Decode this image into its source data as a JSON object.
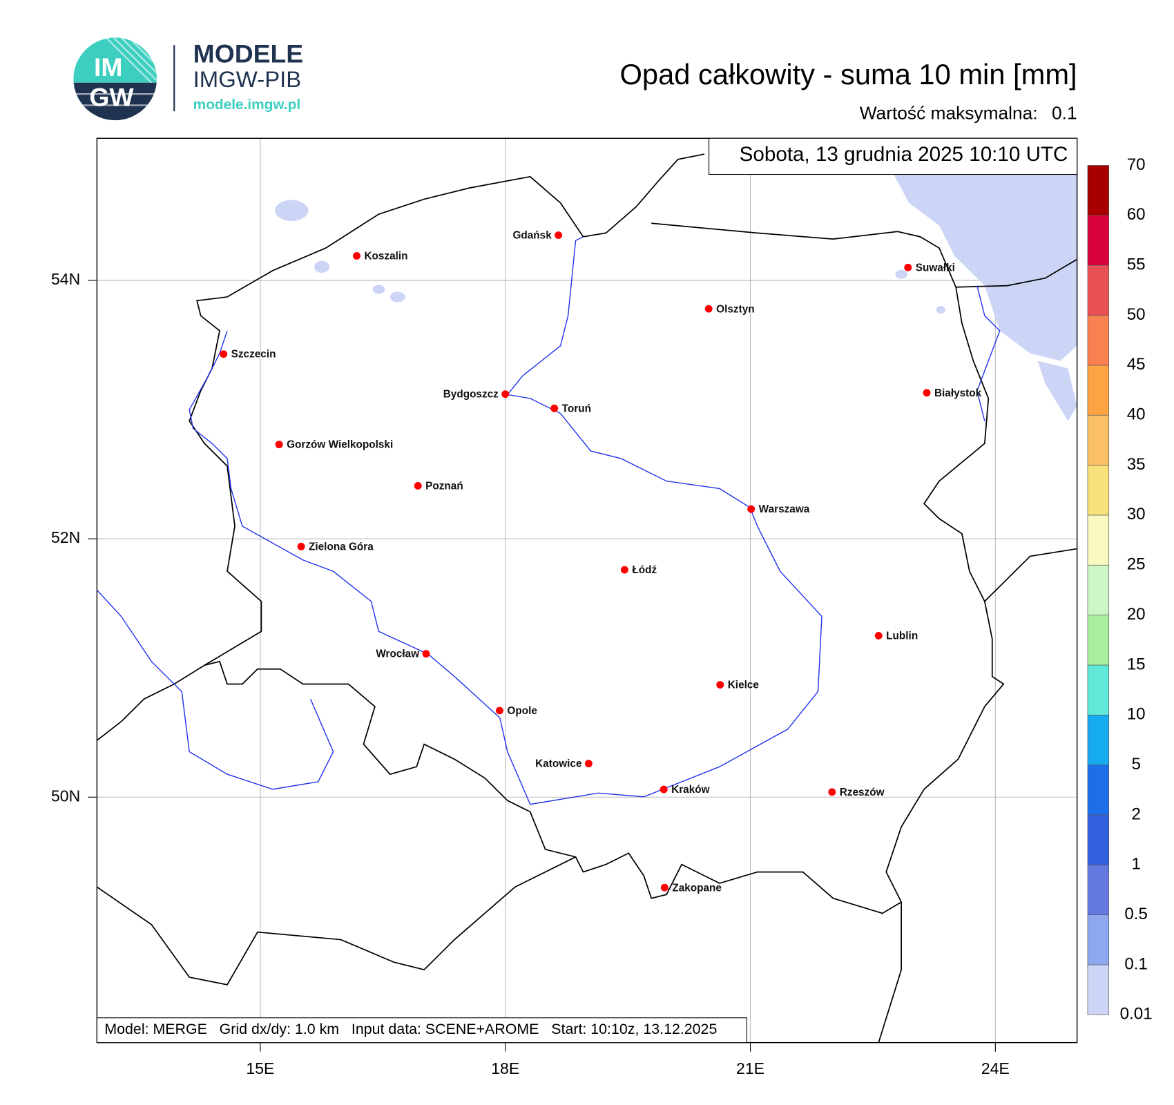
{
  "header": {
    "logo_top": "IM",
    "logo_bottom": "GW",
    "brand": "MODELE",
    "org": "IMGW-PIB",
    "url": "modele.imgw.pl"
  },
  "title": "Opad całkowity - suma 10 min [mm]",
  "max_value_label": "Wartość maksymalna:",
  "max_value": 0.1,
  "date": "Sobota, 13 grudnia 2025 10:10 UTC",
  "footer": "Model: MERGE   Grid dx/dy: 1.0 km   Input data: SCENE+AROME   Start: 10:10z, 13.12.2025",
  "map": {
    "xlim": [
      13,
      25
    ],
    "ylim": [
      48.1,
      55.1
    ],
    "xticks": [
      {
        "value": 15,
        "label": "15E"
      },
      {
        "value": 18,
        "label": "18E"
      },
      {
        "value": 21,
        "label": "21E"
      },
      {
        "value": 24,
        "label": "24E"
      }
    ],
    "yticks": [
      {
        "value": 54,
        "label": "54N"
      },
      {
        "value": 52,
        "label": "52N"
      },
      {
        "value": 50,
        "label": "50N"
      }
    ],
    "grid": true,
    "marker_color": "#ff0000",
    "cities": [
      {
        "name": "Gdańsk",
        "lon": 18.65,
        "lat": 54.35
      },
      {
        "name": "Koszalin",
        "lon": 16.18,
        "lat": 54.19
      },
      {
        "name": "Suwałki",
        "lon": 22.93,
        "lat": 54.1
      },
      {
        "name": "Olsztyn",
        "lon": 20.49,
        "lat": 53.78
      },
      {
        "name": "Szczecin",
        "lon": 14.55,
        "lat": 53.43
      },
      {
        "name": "Białystok",
        "lon": 23.16,
        "lat": 53.13
      },
      {
        "name": "Bydgoszcz",
        "lon": 18.0,
        "lat": 53.12
      },
      {
        "name": "Toruń",
        "lon": 18.6,
        "lat": 53.01
      },
      {
        "name": "Gorzów Wielkopolski",
        "lon": 15.23,
        "lat": 52.73
      },
      {
        "name": "Poznań",
        "lon": 16.93,
        "lat": 52.41
      },
      {
        "name": "Warszawa",
        "lon": 21.01,
        "lat": 52.23
      },
      {
        "name": "Zielona Góra",
        "lon": 15.5,
        "lat": 51.94
      },
      {
        "name": "Łódź",
        "lon": 19.46,
        "lat": 51.76
      },
      {
        "name": "Lublin",
        "lon": 22.57,
        "lat": 51.25
      },
      {
        "name": "Wrocław",
        "lon": 17.03,
        "lat": 51.11
      },
      {
        "name": "Kielce",
        "lon": 20.63,
        "lat": 50.87
      },
      {
        "name": "Opole",
        "lon": 17.93,
        "lat": 50.67
      },
      {
        "name": "Katowice",
        "lon": 19.02,
        "lat": 50.26
      },
      {
        "name": "Kraków",
        "lon": 19.94,
        "lat": 50.06
      },
      {
        "name": "Rzeszów",
        "lon": 22.0,
        "lat": 50.04
      },
      {
        "name": "Zakopane",
        "lon": 19.95,
        "lat": 49.3
      }
    ]
  },
  "colorbar": {
    "levels": [
      0.01,
      0.1,
      0.5,
      1,
      2,
      5,
      10,
      15,
      20,
      25,
      30,
      35,
      40,
      45,
      50,
      55,
      60,
      70
    ],
    "colors": [
      "#ccd5f6",
      "#8ea8f0",
      "#6478e0",
      "#3060e0",
      "#1e6ee8",
      "#16aaf0",
      "#60e8d8",
      "#a8f0a0",
      "#ccf5c8",
      "#fafac0",
      "#f8e07a",
      "#fbbf66",
      "#fca444",
      "#f98050",
      "#e85055",
      "#d8003a",
      "#a80000",
      "#780000"
    ]
  }
}
